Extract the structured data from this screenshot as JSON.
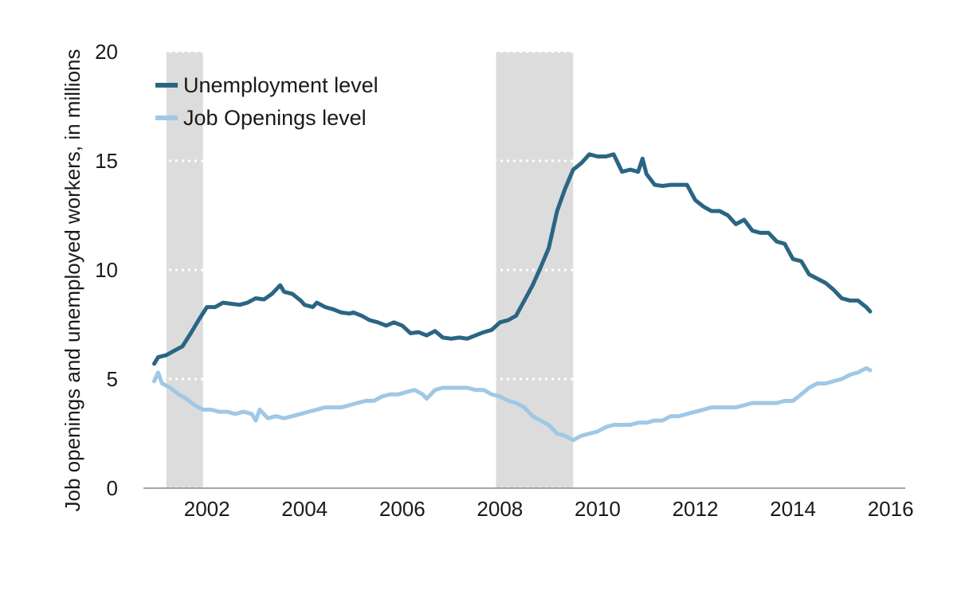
{
  "chart_data": {
    "type": "line",
    "ylabel": "Job openings and unemployed workers, in millions",
    "xlabel": "",
    "title": "",
    "xlim": [
      2000.7,
      2016.3
    ],
    "ylim": [
      0,
      20
    ],
    "x_ticks": [
      2002,
      2004,
      2006,
      2008,
      2010,
      2012,
      2014,
      2016
    ],
    "x_tick_labels": [
      "2002",
      "2004",
      "2006",
      "2008",
      "2010",
      "2012",
      "2014",
      "2016"
    ],
    "y_ticks": [
      0,
      5,
      10,
      15,
      20
    ],
    "y_tick_labels": [
      "0",
      "5",
      "10",
      "15",
      "20"
    ],
    "grid": "horizontal dotted",
    "legend_position": "top-left",
    "recessions": [
      [
        2001.17,
        2001.92
      ],
      [
        2007.92,
        2009.5
      ]
    ],
    "colors": {
      "unemployment": "#2b6584",
      "openings": "#9fc8e6",
      "recession": "#dcdcdc"
    },
    "series": [
      {
        "name": "Unemployment level",
        "key": "unemployment",
        "points": [
          [
            2000.92,
            5.7
          ],
          [
            2001.0,
            6.0
          ],
          [
            2001.17,
            6.1
          ],
          [
            2001.33,
            6.3
          ],
          [
            2001.5,
            6.5
          ],
          [
            2001.67,
            7.1
          ],
          [
            2001.83,
            7.7
          ],
          [
            2002.0,
            8.3
          ],
          [
            2002.17,
            8.3
          ],
          [
            2002.33,
            8.5
          ],
          [
            2002.5,
            8.45
          ],
          [
            2002.67,
            8.4
          ],
          [
            2002.83,
            8.5
          ],
          [
            2003.0,
            8.7
          ],
          [
            2003.17,
            8.65
          ],
          [
            2003.33,
            8.9
          ],
          [
            2003.5,
            9.3
          ],
          [
            2003.58,
            9.0
          ],
          [
            2003.75,
            8.9
          ],
          [
            2003.92,
            8.6
          ],
          [
            2004.0,
            8.4
          ],
          [
            2004.17,
            8.3
          ],
          [
            2004.25,
            8.5
          ],
          [
            2004.42,
            8.3
          ],
          [
            2004.58,
            8.2
          ],
          [
            2004.75,
            8.05
          ],
          [
            2004.92,
            8.0
          ],
          [
            2005.0,
            8.05
          ],
          [
            2005.17,
            7.9
          ],
          [
            2005.33,
            7.7
          ],
          [
            2005.5,
            7.6
          ],
          [
            2005.67,
            7.45
          ],
          [
            2005.83,
            7.6
          ],
          [
            2006.0,
            7.45
          ],
          [
            2006.17,
            7.1
          ],
          [
            2006.33,
            7.15
          ],
          [
            2006.5,
            7.0
          ],
          [
            2006.67,
            7.2
          ],
          [
            2006.83,
            6.9
          ],
          [
            2007.0,
            6.85
          ],
          [
            2007.17,
            6.9
          ],
          [
            2007.33,
            6.85
          ],
          [
            2007.5,
            7.0
          ],
          [
            2007.67,
            7.15
          ],
          [
            2007.83,
            7.25
          ],
          [
            2008.0,
            7.6
          ],
          [
            2008.17,
            7.7
          ],
          [
            2008.33,
            7.9
          ],
          [
            2008.5,
            8.6
          ],
          [
            2008.67,
            9.3
          ],
          [
            2008.83,
            10.1
          ],
          [
            2009.0,
            11.0
          ],
          [
            2009.17,
            12.7
          ],
          [
            2009.33,
            13.7
          ],
          [
            2009.5,
            14.6
          ],
          [
            2009.67,
            14.9
          ],
          [
            2009.83,
            15.3
          ],
          [
            2010.0,
            15.2
          ],
          [
            2010.17,
            15.2
          ],
          [
            2010.33,
            15.3
          ],
          [
            2010.5,
            14.5
          ],
          [
            2010.67,
            14.6
          ],
          [
            2010.83,
            14.5
          ],
          [
            2010.92,
            15.1
          ],
          [
            2011.0,
            14.4
          ],
          [
            2011.17,
            13.9
          ],
          [
            2011.33,
            13.85
          ],
          [
            2011.5,
            13.9
          ],
          [
            2011.67,
            13.9
          ],
          [
            2011.83,
            13.9
          ],
          [
            2012.0,
            13.2
          ],
          [
            2012.17,
            12.9
          ],
          [
            2012.33,
            12.7
          ],
          [
            2012.5,
            12.7
          ],
          [
            2012.67,
            12.5
          ],
          [
            2012.83,
            12.1
          ],
          [
            2013.0,
            12.3
          ],
          [
            2013.17,
            11.8
          ],
          [
            2013.33,
            11.7
          ],
          [
            2013.5,
            11.7
          ],
          [
            2013.67,
            11.3
          ],
          [
            2013.83,
            11.2
          ],
          [
            2014.0,
            10.5
          ],
          [
            2014.17,
            10.4
          ],
          [
            2014.33,
            9.8
          ],
          [
            2014.5,
            9.6
          ],
          [
            2014.67,
            9.4
          ],
          [
            2014.83,
            9.1
          ],
          [
            2015.0,
            8.7
          ],
          [
            2015.17,
            8.6
          ],
          [
            2015.33,
            8.6
          ],
          [
            2015.5,
            8.3
          ],
          [
            2015.58,
            8.1
          ]
        ]
      },
      {
        "name": "Job Openings level",
        "key": "openings",
        "points": [
          [
            2000.92,
            4.9
          ],
          [
            2001.0,
            5.3
          ],
          [
            2001.08,
            4.8
          ],
          [
            2001.25,
            4.6
          ],
          [
            2001.42,
            4.3
          ],
          [
            2001.58,
            4.1
          ],
          [
            2001.75,
            3.8
          ],
          [
            2001.92,
            3.6
          ],
          [
            2002.08,
            3.6
          ],
          [
            2002.25,
            3.5
          ],
          [
            2002.42,
            3.5
          ],
          [
            2002.58,
            3.4
          ],
          [
            2002.75,
            3.5
          ],
          [
            2002.92,
            3.4
          ],
          [
            2003.0,
            3.1
          ],
          [
            2003.08,
            3.6
          ],
          [
            2003.25,
            3.2
          ],
          [
            2003.42,
            3.3
          ],
          [
            2003.58,
            3.2
          ],
          [
            2003.75,
            3.3
          ],
          [
            2003.92,
            3.4
          ],
          [
            2004.08,
            3.5
          ],
          [
            2004.25,
            3.6
          ],
          [
            2004.42,
            3.7
          ],
          [
            2004.58,
            3.7
          ],
          [
            2004.75,
            3.7
          ],
          [
            2004.92,
            3.8
          ],
          [
            2005.08,
            3.9
          ],
          [
            2005.25,
            4.0
          ],
          [
            2005.42,
            4.0
          ],
          [
            2005.58,
            4.2
          ],
          [
            2005.75,
            4.3
          ],
          [
            2005.92,
            4.3
          ],
          [
            2006.08,
            4.4
          ],
          [
            2006.25,
            4.5
          ],
          [
            2006.42,
            4.3
          ],
          [
            2006.5,
            4.1
          ],
          [
            2006.67,
            4.5
          ],
          [
            2006.83,
            4.6
          ],
          [
            2007.0,
            4.6
          ],
          [
            2007.17,
            4.6
          ],
          [
            2007.33,
            4.6
          ],
          [
            2007.5,
            4.5
          ],
          [
            2007.67,
            4.5
          ],
          [
            2007.83,
            4.3
          ],
          [
            2008.0,
            4.2
          ],
          [
            2008.17,
            4.0
          ],
          [
            2008.33,
            3.9
          ],
          [
            2008.5,
            3.7
          ],
          [
            2008.67,
            3.3
          ],
          [
            2008.83,
            3.1
          ],
          [
            2009.0,
            2.9
          ],
          [
            2009.17,
            2.5
          ],
          [
            2009.33,
            2.4
          ],
          [
            2009.5,
            2.2
          ],
          [
            2009.67,
            2.4
          ],
          [
            2009.83,
            2.5
          ],
          [
            2010.0,
            2.6
          ],
          [
            2010.17,
            2.8
          ],
          [
            2010.33,
            2.9
          ],
          [
            2010.5,
            2.9
          ],
          [
            2010.67,
            2.9
          ],
          [
            2010.83,
            3.0
          ],
          [
            2011.0,
            3.0
          ],
          [
            2011.17,
            3.1
          ],
          [
            2011.33,
            3.1
          ],
          [
            2011.5,
            3.3
          ],
          [
            2011.67,
            3.3
          ],
          [
            2011.83,
            3.4
          ],
          [
            2012.0,
            3.5
          ],
          [
            2012.17,
            3.6
          ],
          [
            2012.33,
            3.7
          ],
          [
            2012.5,
            3.7
          ],
          [
            2012.67,
            3.7
          ],
          [
            2012.83,
            3.7
          ],
          [
            2013.0,
            3.8
          ],
          [
            2013.17,
            3.9
          ],
          [
            2013.33,
            3.9
          ],
          [
            2013.5,
            3.9
          ],
          [
            2013.67,
            3.9
          ],
          [
            2013.83,
            4.0
          ],
          [
            2014.0,
            4.0
          ],
          [
            2014.17,
            4.3
          ],
          [
            2014.33,
            4.6
          ],
          [
            2014.5,
            4.8
          ],
          [
            2014.67,
            4.8
          ],
          [
            2014.83,
            4.9
          ],
          [
            2015.0,
            5.0
          ],
          [
            2015.17,
            5.2
          ],
          [
            2015.33,
            5.3
          ],
          [
            2015.5,
            5.5
          ],
          [
            2015.58,
            5.4
          ]
        ]
      }
    ]
  }
}
